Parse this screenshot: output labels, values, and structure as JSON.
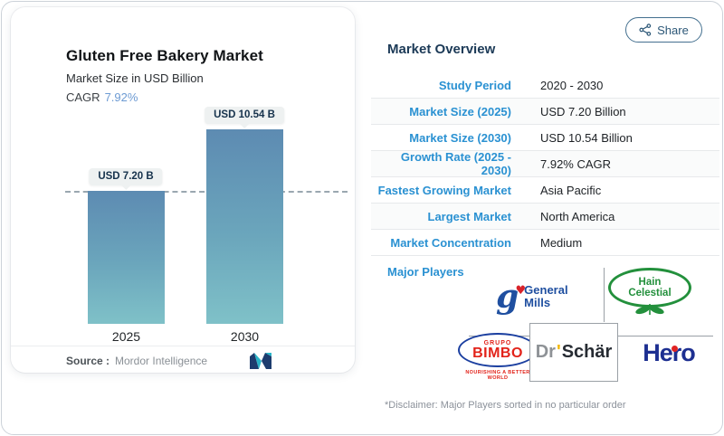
{
  "share_button": {
    "label": "Share"
  },
  "chart_card": {
    "title": "Gluten Free Bakery Market",
    "subtitle": "Market Size in USD Billion",
    "cagr_label": "CAGR",
    "cagr_value": "7.92%",
    "source_label": "Source :",
    "source_value": "Mordor Intelligence"
  },
  "chart_data": {
    "type": "bar",
    "categories": [
      "2025",
      "2030"
    ],
    "values": [
      7.2,
      10.54
    ],
    "bar_labels": [
      "USD 7.20 B",
      "USD 10.54 B"
    ],
    "title": "Gluten Free Bakery Market",
    "ylabel": "Market Size in USD Billion",
    "reference_line": 7.2,
    "bar_gradient_top": "#5d8bb2",
    "bar_gradient_bottom": "#7fc1c8",
    "legend": "none",
    "grid": "off"
  },
  "overview": {
    "heading": "Market Overview",
    "rows": [
      {
        "label": "Study Period",
        "value": "2020 - 2030"
      },
      {
        "label": "Market Size (2025)",
        "value": "USD 7.20 Billion"
      },
      {
        "label": "Market Size (2030)",
        "value": "USD 10.54 Billion"
      },
      {
        "label": "Growth Rate (2025 - 2030)",
        "value": "7.92% CAGR"
      },
      {
        "label": "Fastest Growing Market",
        "value": "Asia Pacific"
      },
      {
        "label": "Largest Market",
        "value": "North America"
      },
      {
        "label": "Market Concentration",
        "value": "Medium"
      }
    ],
    "major_players_label": "Major Players",
    "disclaimer": "*Disclaimer: Major Players sorted in no particular order"
  },
  "players": {
    "general_mills": {
      "monogram": "g",
      "heart": "♥",
      "line1": "General",
      "line2": "Mills"
    },
    "hain": {
      "line1": "Hain",
      "line2": "Celestial"
    },
    "bimbo": {
      "grupo": "GRUPO",
      "name": "BIMBO",
      "tagline": "NOURISHING A BETTER WORLD"
    },
    "schar": {
      "dr": "Dr",
      "apostrophe": "'",
      "name": "Schär"
    },
    "hero": {
      "name": "Hero"
    }
  },
  "colors": {
    "accent_blue": "#2a91d2",
    "heading_navy": "#1c3a57",
    "cagr_blue": "#6d9bd3",
    "share_navy": "#2c5777",
    "divider_gray": "#e7e9eb"
  },
  "icons": {
    "share": "share-nodes-icon",
    "mordor": "mordor-intelligence-logo"
  }
}
